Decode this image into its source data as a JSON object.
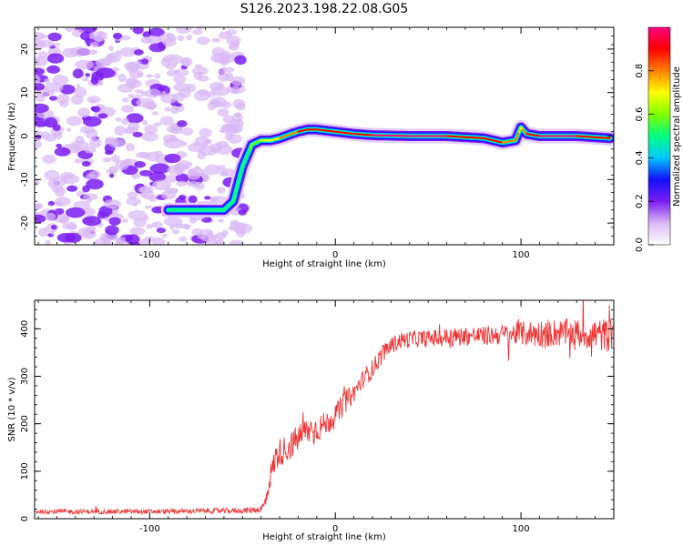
{
  "figure_title": "S126.2023.198.22.08.G05",
  "chart_data": [
    {
      "type": "heatmap",
      "title": "",
      "xlabel": "Height of straight line (km)",
      "ylabel": "Frequency (Hz)",
      "xlim": [
        -162,
        150
      ],
      "ylim": [
        -25,
        25
      ],
      "xticks": [
        -100,
        0,
        100
      ],
      "yticks": [
        -20,
        -10,
        0,
        10,
        20
      ],
      "grid": false,
      "colorbar": {
        "label": "Normalized spectral amplitude",
        "range": [
          0,
          1
        ],
        "ticks": [
          "0.0",
          "0.2",
          "0.4",
          "0.6",
          "0.8"
        ],
        "colormap": [
          "#ffffff",
          "#d9b8f5",
          "#7a1cf2",
          "#1010ff",
          "#00c8ff",
          "#00ff80",
          "#80ff00",
          "#ffff00",
          "#ff8000",
          "#ff0000",
          "#ff0080"
        ]
      },
      "ridge": {
        "x": [
          -90,
          -75,
          -60,
          -55,
          -50,
          -45,
          -40,
          -35,
          -30,
          -25,
          -20,
          -15,
          -10,
          0,
          10,
          20,
          40,
          60,
          80,
          90,
          97,
          100,
          103,
          110,
          130,
          148
        ],
        "y": [
          -17,
          -17,
          -17,
          -15,
          -7,
          -2,
          -1,
          -1,
          -0.5,
          0.3,
          1,
          1.5,
          1.5,
          1,
          0.5,
          0.2,
          0,
          0,
          -0.5,
          -1.5,
          -1,
          2,
          0.5,
          0,
          0,
          -0.5
        ],
        "amplitude": [
          0.5,
          0.55,
          0.5,
          0.45,
          0.4,
          0.6,
          0.65,
          0.7,
          0.75,
          0.8,
          0.85,
          0.85,
          0.9,
          0.9,
          0.9,
          0.95,
          0.95,
          0.95,
          0.9,
          0.85,
          0.8,
          0.7,
          0.85,
          0.95,
          0.95,
          0.9
        ]
      },
      "noise_region": {
        "x": [
          -162,
          -50
        ],
        "y": [
          -25,
          25
        ],
        "amplitude": [
          0.1,
          0.35
        ]
      }
    },
    {
      "type": "line",
      "title": "",
      "xlabel": "Height of straight line (km)",
      "ylabel": "SNR (10 * v/v)",
      "xlim": [
        -162,
        150
      ],
      "ylim": [
        0,
        460
      ],
      "xticks": [
        -100,
        0,
        100
      ],
      "yticks": [
        0,
        100,
        200,
        300,
        400
      ],
      "grid": false,
      "series": [
        {
          "color": "#ee3333",
          "x": [
            -162,
            -100,
            -50,
            -40,
            -38,
            -35,
            -32,
            -30,
            -25,
            -20,
            -15,
            -10,
            -5,
            0,
            5,
            10,
            15,
            20,
            25,
            30,
            35,
            40,
            50,
            60,
            70,
            80,
            90,
            100,
            110,
            120,
            130,
            140,
            150
          ],
          "y": [
            15,
            15,
            17,
            20,
            30,
            90,
            130,
            140,
            150,
            170,
            185,
            190,
            200,
            215,
            245,
            265,
            295,
            315,
            345,
            365,
            375,
            378,
            380,
            382,
            385,
            385,
            388,
            390,
            390,
            392,
            390,
            388,
            385
          ],
          "noise_amplitude": [
            5,
            5,
            6,
            8,
            20,
            25,
            30,
            30,
            30,
            30,
            30,
            30,
            25,
            25,
            25,
            20,
            20,
            20,
            20,
            18,
            18,
            18,
            18,
            20,
            20,
            20,
            22,
            25,
            30,
            30,
            30,
            35,
            35
          ]
        }
      ]
    }
  ]
}
